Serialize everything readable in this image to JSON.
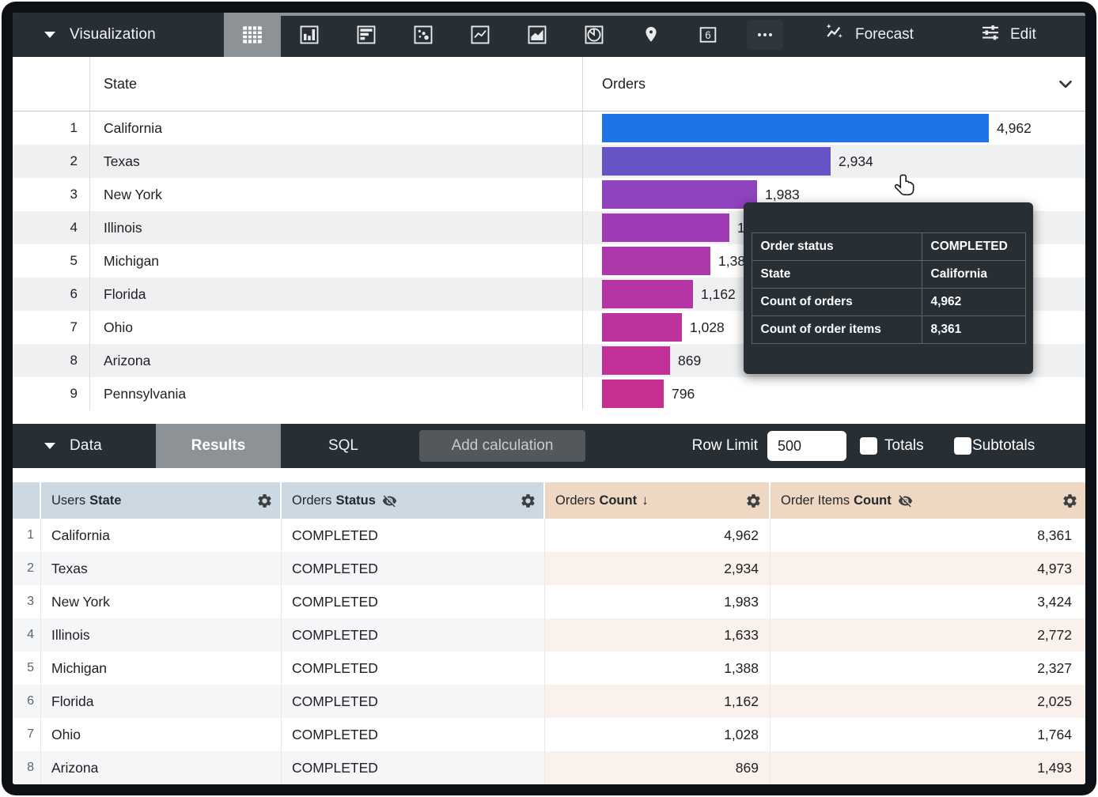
{
  "toolbar": {
    "section_label": "Visualization",
    "viz_types": [
      {
        "name": "table",
        "selected": true
      },
      {
        "name": "column-chart",
        "selected": false
      },
      {
        "name": "bar-chart",
        "selected": false
      },
      {
        "name": "scatter-chart",
        "selected": false
      },
      {
        "name": "line-chart",
        "selected": false
      },
      {
        "name": "area-chart",
        "selected": false
      },
      {
        "name": "pie-chart",
        "selected": false
      },
      {
        "name": "map-pin",
        "selected": false
      },
      {
        "name": "single-value",
        "selected": false
      },
      {
        "name": "more-options",
        "selected": false
      }
    ],
    "forecast_label": "Forecast",
    "edit_label": "Edit"
  },
  "viz_table": {
    "state_header": "State",
    "orders_header": "Orders",
    "rows": [
      {
        "num": "1",
        "state": "California",
        "value": 4962,
        "value_label": "4,962",
        "color": "#1d73e8"
      },
      {
        "num": "2",
        "state": "Texas",
        "value": 2934,
        "value_label": "2,934",
        "color": "#6753c6"
      },
      {
        "num": "3",
        "state": "New York",
        "value": 1983,
        "value_label": "1,983",
        "color": "#8f43bf"
      },
      {
        "num": "4",
        "state": "Illinois",
        "value": 1633,
        "value_label": "1,633",
        "color": "#a03bb6"
      },
      {
        "num": "5",
        "state": "Michigan",
        "value": 1388,
        "value_label": "1,388",
        "color": "#ac38ac"
      },
      {
        "num": "6",
        "state": "Florida",
        "value": 1162,
        "value_label": "1,162",
        "color": "#b535a4"
      },
      {
        "num": "7",
        "state": "Ohio",
        "value": 1028,
        "value_label": "1,028",
        "color": "#bc339c"
      },
      {
        "num": "8",
        "state": "Arizona",
        "value": 869,
        "value_label": "869",
        "color": "#c23197"
      },
      {
        "num": "9",
        "state": "Pennsylvania",
        "value": 796,
        "value_label": "796",
        "color": "#c73092"
      }
    ]
  },
  "tooltip": {
    "rows": [
      {
        "label": "Order status",
        "value": "COMPLETED"
      },
      {
        "label": "State",
        "value": "California"
      },
      {
        "label": "Count of orders",
        "value": "4,962"
      },
      {
        "label": "Count of order items",
        "value": "8,361"
      }
    ]
  },
  "data_bar": {
    "section_label": "Data",
    "tabs": [
      {
        "label": "Results",
        "active": true
      },
      {
        "label": "SQL",
        "active": false
      }
    ],
    "add_calculation_label": "Add calculation",
    "row_limit_label": "Row Limit",
    "row_limit_value": "500",
    "totals_label": "Totals",
    "subtotals_label": "Subtotals"
  },
  "data_table": {
    "columns": [
      {
        "prefix": "Users",
        "name": "State",
        "kind": "dimension",
        "eye_hidden": false,
        "sort": ""
      },
      {
        "prefix": "Orders",
        "name": "Status",
        "kind": "dimension",
        "eye_hidden": true,
        "sort": ""
      },
      {
        "prefix": "Orders",
        "name": "Count",
        "kind": "measure",
        "eye_hidden": false,
        "sort": "desc"
      },
      {
        "prefix": "Order Items",
        "name": "Count",
        "kind": "measure",
        "eye_hidden": true,
        "sort": ""
      }
    ],
    "sort_desc_glyph": "↓",
    "rows": [
      {
        "num": "1",
        "state": "California",
        "status": "COMPLETED",
        "orders_count": "4,962",
        "order_items_count": "8,361"
      },
      {
        "num": "2",
        "state": "Texas",
        "status": "COMPLETED",
        "orders_count": "2,934",
        "order_items_count": "4,973"
      },
      {
        "num": "3",
        "state": "New York",
        "status": "COMPLETED",
        "orders_count": "1,983",
        "order_items_count": "3,424"
      },
      {
        "num": "4",
        "state": "Illinois",
        "status": "COMPLETED",
        "orders_count": "1,633",
        "order_items_count": "2,772"
      },
      {
        "num": "5",
        "state": "Michigan",
        "status": "COMPLETED",
        "orders_count": "1,388",
        "order_items_count": "2,327"
      },
      {
        "num": "6",
        "state": "Florida",
        "status": "COMPLETED",
        "orders_count": "1,162",
        "order_items_count": "2,025"
      },
      {
        "num": "7",
        "state": "Ohio",
        "status": "COMPLETED",
        "orders_count": "1,028",
        "order_items_count": "1,764"
      },
      {
        "num": "8",
        "state": "Arizona",
        "status": "COMPLETED",
        "orders_count": "869",
        "order_items_count": "1,493"
      }
    ]
  },
  "colors": {
    "toolbar_bg": "#272e34",
    "selected_tile": "#8d9296",
    "dimension_header": "#cdd9e2",
    "measure_header": "#eed7c3",
    "dimension_stripe": "#f4f6f8",
    "measure_stripe": "#faf1ec",
    "viz_stripe": "#eef0f1"
  }
}
